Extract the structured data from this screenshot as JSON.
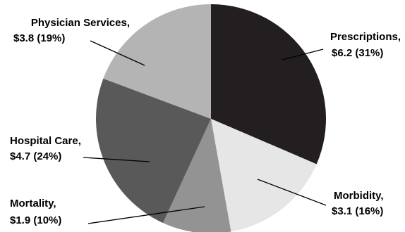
{
  "chart_data": {
    "type": "pie",
    "title": "",
    "slices": [
      {
        "name": "Prescriptions",
        "value": 6.2,
        "value_label": "$6.2",
        "percent": 31,
        "percent_label": "(31%)",
        "color": "#231f20"
      },
      {
        "name": "Morbidity",
        "value": 3.1,
        "value_label": "$3.1",
        "percent": 16,
        "percent_label": "(16%)",
        "color": "#e6e6e6"
      },
      {
        "name": "Mortality",
        "value": 1.9,
        "value_label": "$1.9",
        "percent": 10,
        "percent_label": "(10%)",
        "color": "#939393"
      },
      {
        "name": "Hospital Care",
        "value": 4.7,
        "value_label": "$4.7",
        "percent": 24,
        "percent_label": "(24%)",
        "color": "#595959"
      },
      {
        "name": "Physician Services",
        "value": 3.8,
        "value_label": "$3.8",
        "percent": 19,
        "percent_label": "(19%)",
        "color": "#b4b4b4"
      }
    ],
    "start_angle": "12 o'clock",
    "direction": "clockwise",
    "legend": "none"
  }
}
